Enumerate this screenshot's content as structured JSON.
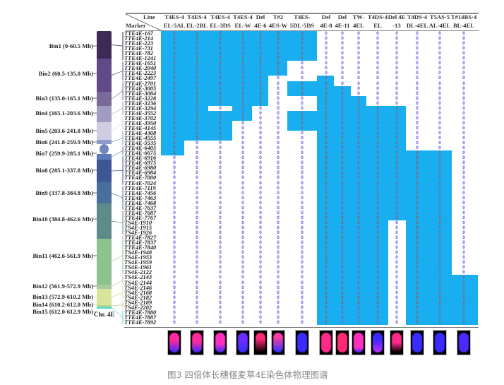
{
  "header": {
    "line_label": "Line",
    "marker_label": "Marker"
  },
  "colors": {
    "present": "#18aeef",
    "call_one": "#b0485a",
    "call_zero": "#5a4fe6"
  },
  "lines": [
    {
      "name": [
        "T4ES·4",
        "EL-5AL"
      ],
      "calls": [
        [
          1,
          25
        ],
        [
          0,
          34
        ]
      ]
    },
    {
      "name": [
        "T4ES·4",
        "EL-2BL"
      ],
      "calls": [
        [
          1,
          22
        ],
        [
          0,
          37
        ]
      ]
    },
    {
      "name": [
        "T4ES·4",
        "EL-3DS"
      ],
      "calls": [
        [
          1,
          15
        ],
        [
          0,
          1
        ],
        [
          1,
          6
        ],
        [
          0,
          37
        ]
      ]
    },
    {
      "name": [
        "T4ES·4",
        "EL-W"
      ],
      "calls": [
        [
          1,
          18
        ],
        [
          0,
          41
        ]
      ]
    },
    {
      "name": [
        "Del",
        "4E-6"
      ],
      "calls": [
        [
          1,
          15
        ],
        [
          0,
          44
        ]
      ]
    },
    {
      "name": [
        "T#2",
        "4ES-W"
      ],
      "calls": [
        [
          1,
          9
        ],
        [
          0,
          50
        ]
      ]
    },
    {
      "name": [
        "T4ES-",
        "5DL·5DS"
      ],
      "calls": [
        [
          1,
          6
        ],
        [
          0,
          4
        ],
        [
          1,
          3
        ],
        [
          0,
          3
        ],
        [
          1,
          4
        ],
        [
          0,
          39
        ]
      ]
    },
    {
      "name": [
        "Del",
        "4E-8"
      ],
      "calls": [
        [
          0,
          9
        ],
        [
          1,
          50
        ]
      ]
    },
    {
      "name": [
        "Del",
        "4E-11"
      ],
      "calls": [
        [
          0,
          11
        ],
        [
          1,
          48
        ]
      ]
    },
    {
      "name": [
        "TW-",
        "4EL"
      ],
      "calls": [
        [
          0,
          13
        ],
        [
          1,
          46
        ]
      ]
    },
    {
      "name": [
        "T4DS·4",
        "EL"
      ],
      "calls": [
        [
          0,
          15
        ],
        [
          1,
          44
        ]
      ]
    },
    {
      "name": [
        "Del 4E",
        "-13"
      ],
      "calls": [
        [
          0,
          15
        ],
        [
          1,
          23
        ],
        [
          0,
          21
        ]
      ]
    },
    {
      "name": [
        "T4DS·4",
        "DL-4EL"
      ],
      "calls": [
        [
          0,
          24
        ],
        [
          1,
          35
        ]
      ]
    },
    {
      "name": [
        "T5AS·5",
        "AL-4EL"
      ],
      "calls": [
        [
          0,
          24
        ],
        [
          1,
          35
        ]
      ]
    },
    {
      "name": [
        "T#14BS·4",
        "BL-4EL"
      ],
      "calls": [
        [
          0,
          49
        ],
        [
          1,
          10
        ]
      ]
    }
  ],
  "markers": [
    "TTE4E-167",
    "TTE4E-214",
    "TTE4E-223",
    "TTE4E-731",
    "TTE4E-782",
    "TTE4E-1241",
    "TTE4E-1651",
    "TTE4E-2040",
    "TTE4E-2223",
    "TTE4E-2497",
    "TTE4E-2701",
    "TTE4E-3005",
    "TTE4E-3084",
    "TTE4E-3228",
    "TTE4E-3236",
    "TTE4E-3294",
    "TTE4E-3552",
    "TTE4E-3702",
    "TTE4E-3950",
    "TTE4E-4145",
    "TTE4E-4308",
    "TTE4E-4555",
    "TTE4E-5535",
    "TTE4E-6405",
    "TTE4E-6675",
    "TTE4E-6916",
    "TTE4E-6975",
    "TTE4E-6980",
    "TTE4E-6984",
    "TTE4E-7000",
    "TTE4E-7024",
    "TTE4E-7119",
    "TTE4E-7456",
    "TTE4E-7463",
    "TTE4E-7468",
    "TTE4E-7637",
    "TTE4E-7687",
    "TTE4E-7767",
    "TS4E-1910",
    "TS4E-1915",
    "TS4E-1926",
    "TTE4E-7827",
    "TTE4E-7837",
    "TTE4E-7840",
    "TS4E-1948",
    "TS4E-1953",
    "TS4E-1959",
    "TS4E-1961",
    "TS4E-2122",
    "TS4E-2143",
    "TS4E-2144",
    "TS4E-2146",
    "TS4E-2168",
    "TS4E-2182",
    "TS4E-2189",
    "TS4E-2202",
    "TTE4E-7880",
    "TTE4E-7887",
    "TTE4E-7892"
  ],
  "chromosome": {
    "label": "Chr. 4E",
    "bins": [
      {
        "label": "Bin1 (0-60.5 Mb)",
        "color": "#3d2a55"
      },
      {
        "label": "Bin2 (60.5-135.0 Mb)",
        "color": "#614a85"
      },
      {
        "label": "Bin3 (135.0-165.1 Mb)",
        "color": "#7a6a9a"
      },
      {
        "label": "Bin4 (165.1-203.6 Mb)",
        "color": "#a29bc2"
      },
      {
        "label": "Bin5 (203.6-241.8 Mb)",
        "color": "#cfcce4"
      },
      {
        "label": "Bin6 (241.8-259.9 Mb)",
        "color": "#8e9cc8"
      },
      {
        "label": "Bin7 (259.9-285.1 Mb)",
        "color": "#5d7ab8"
      },
      {
        "label": "Bin8 (285.1-337.8 Mb)",
        "color": "#3f5694"
      },
      {
        "label": "Bin9 (337.8-384.8 Mb)",
        "color": "#4a6f9c"
      },
      {
        "label": "Bin10 (384.8-462.6 Mb)",
        "color": "#5e8a8a"
      },
      {
        "label": "Bin11 (462.6-561.9 Mb)",
        "color": "#8ec28e"
      },
      {
        "label": "Bin12 (561.9-572.9 Mb)",
        "color": "#a8c8a0"
      },
      {
        "label": "Bin13 (572.9-610.2 Mb)",
        "color": "#d8e49a"
      },
      {
        "label": "Bin14 (610.2-612.0 Mb)",
        "color": "#bcd48a"
      },
      {
        "label": "Bin15 (612.0-612.9 Mb)",
        "color": "#5fd8cc"
      }
    ]
  },
  "caption": "图3 四倍体长穗偃麦草4E染色体物理图谱"
}
